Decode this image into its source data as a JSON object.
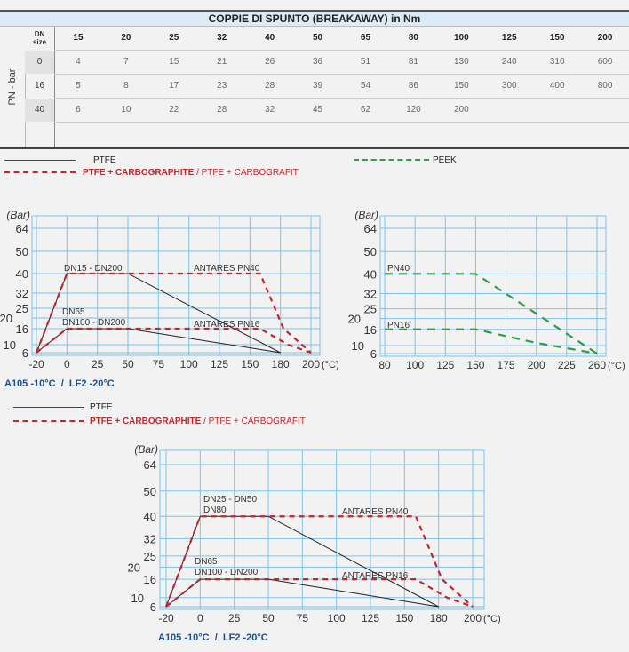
{
  "table": {
    "title": "COPPIE DI SPUNTO (BREAKAWAY) in Nm",
    "row_axis_label": "PN - bar",
    "corner_label": [
      "DN",
      "size"
    ],
    "dn_sizes": [
      "15",
      "20",
      "25",
      "32",
      "40",
      "50",
      "65",
      "80",
      "100",
      "125",
      "150",
      "200"
    ],
    "rows": [
      {
        "pn": "0",
        "values": [
          "4",
          "7",
          "15",
          "21",
          "26",
          "36",
          "51",
          "81",
          "130",
          "240",
          "310",
          "600"
        ]
      },
      {
        "pn": "16",
        "values": [
          "5",
          "8",
          "17",
          "23",
          "28",
          "39",
          "54",
          "86",
          "150",
          "300",
          "400",
          "800"
        ]
      },
      {
        "pn": "40",
        "values": [
          "6",
          "10",
          "22",
          "28",
          "32",
          "45",
          "62",
          "120",
          "200",
          "",
          "",
          ""
        ]
      }
    ]
  },
  "legend_top": {
    "ptfe": "PTFE",
    "carbo": "PTFE + CARBOGRAPHITE",
    "sep": "/",
    "carbo_alt": "PTFE + CARBOGRAFIT",
    "peek": "PEEK"
  },
  "legend_bottom": {
    "ptfe": "PTFE",
    "carbo": "PTFE + CARBOGRAPHITE",
    "sep": "/",
    "carbo_alt": "PTFE + CARBOGRAFIT"
  },
  "colors": {
    "ptfe": "#222222",
    "carbo": "#c0272d",
    "peek": "#2e9e48",
    "grid": "#7cc4ea",
    "footnote": "#1d4e8a"
  },
  "chart_data": [
    {
      "type": "line",
      "ylabel": "(Bar)",
      "xunit": "(°C)",
      "x_ticks": [
        -20,
        0,
        25,
        50,
        75,
        100,
        125,
        150,
        180,
        200
      ],
      "y_ticks": [
        6,
        10,
        16,
        20,
        25,
        32,
        40,
        50,
        64
      ],
      "series": [
        {
          "name": "PTFE PN40",
          "style": "ptfe",
          "points": [
            [
              -20,
              6
            ],
            [
              0,
              40
            ],
            [
              50,
              40
            ],
            [
              180,
              6
            ]
          ]
        },
        {
          "name": "PTFE PN16",
          "style": "ptfe",
          "points": [
            [
              -20,
              6
            ],
            [
              0,
              16
            ],
            [
              50,
              16
            ],
            [
              180,
              6
            ]
          ]
        },
        {
          "name": "PTFE + CARBOGRAPHITE PN40",
          "style": "carbo",
          "points": [
            [
              -20,
              6
            ],
            [
              0,
              40
            ],
            [
              160,
              40
            ],
            [
              182,
              16
            ],
            [
              200,
              6
            ]
          ]
        },
        {
          "name": "PTFE + CARBOGRAPHITE PN16",
          "style": "carbo",
          "points": [
            [
              -20,
              6
            ],
            [
              0,
              16
            ],
            [
              160,
              16
            ],
            [
              185,
              10
            ],
            [
              200,
              6
            ]
          ]
        }
      ],
      "annotations": [
        "DN15 - DN200",
        "ANTARES PN40",
        "DN65",
        "DN100 - DN200",
        "ANTARES PN16"
      ],
      "footnote": "A105 -10°C  /  LF2 -20°C"
    },
    {
      "type": "line",
      "ylabel": "(Bar)",
      "xunit": "(°C)",
      "x_ticks": [
        80,
        100,
        125,
        150,
        175,
        200,
        225,
        260
      ],
      "y_ticks": [
        6,
        10,
        16,
        20,
        25,
        32,
        40,
        50,
        64
      ],
      "series": [
        {
          "name": "PEEK PN40",
          "style": "peek",
          "points": [
            [
              80,
              40
            ],
            [
              150,
              40
            ],
            [
              260,
              6
            ]
          ]
        },
        {
          "name": "PEEK PN16",
          "style": "peek",
          "points": [
            [
              80,
              16
            ],
            [
              150,
              16
            ],
            [
              200,
              11
            ],
            [
              260,
              6
            ]
          ]
        }
      ],
      "annotations": [
        "PN40",
        "PN16"
      ]
    },
    {
      "type": "line",
      "ylabel": "(Bar)",
      "xunit": "(°C)",
      "x_ticks": [
        -20,
        0,
        25,
        50,
        75,
        100,
        125,
        150,
        180,
        200
      ],
      "y_ticks": [
        6,
        10,
        16,
        20,
        25,
        32,
        40,
        50,
        64
      ],
      "series": [
        {
          "name": "PTFE PN40",
          "style": "ptfe",
          "points": [
            [
              -20,
              6
            ],
            [
              0,
              40
            ],
            [
              50,
              40
            ],
            [
              180,
              6
            ]
          ]
        },
        {
          "name": "PTFE PN16",
          "style": "ptfe",
          "points": [
            [
              -20,
              6
            ],
            [
              0,
              16
            ],
            [
              50,
              16
            ],
            [
              180,
              6
            ]
          ]
        },
        {
          "name": "PTFE + CARBOGRAPHITE PN40",
          "style": "carbo",
          "points": [
            [
              -20,
              6
            ],
            [
              0,
              40
            ],
            [
              160,
              40
            ],
            [
              182,
              16
            ],
            [
              200,
              6
            ]
          ]
        },
        {
          "name": "PTFE + CARBOGRAPHITE PN16",
          "style": "carbo",
          "points": [
            [
              -20,
              6
            ],
            [
              0,
              16
            ],
            [
              160,
              16
            ],
            [
              185,
              10
            ],
            [
              200,
              6
            ]
          ]
        }
      ],
      "annotations": [
        "DN25 - DN50",
        "DN80",
        "ANTARES PN40",
        "DN65",
        "DN100 - DN200",
        "ANTARES PN16"
      ],
      "footnote": "A105 -10°C  /  LF2 -20°C"
    }
  ]
}
